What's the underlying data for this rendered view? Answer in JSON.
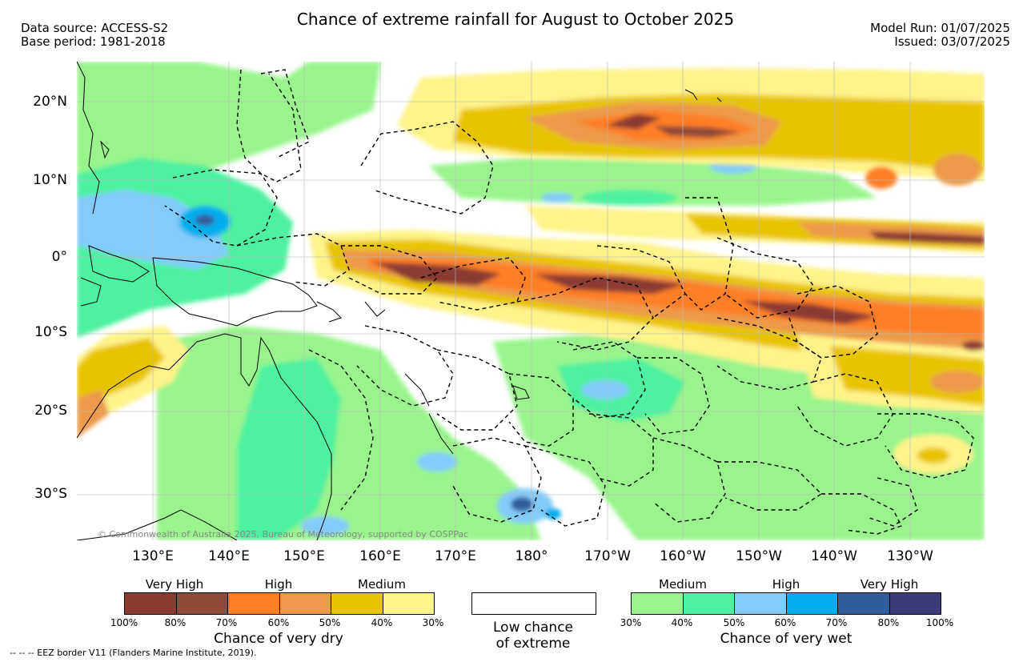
{
  "header": {
    "title": "Chance of extreme rainfall for August to October 2025",
    "data_source": "Data source: ACCESS-S2",
    "base_period": "Base period: 1981-2018",
    "model_run": "Model Run: 01/07/2025",
    "issued": "Issued: 03/07/2025"
  },
  "map": {
    "copyright": "© Commonwealth of Australia 2025, Bureau of Meteorology, supported by COSPPac",
    "lat_labels": [
      "20°N",
      "10°N",
      "0°",
      "10°S",
      "20°S",
      "30°S"
    ],
    "lon_labels": [
      "130°E",
      "140°E",
      "150°E",
      "160°E",
      "170°E",
      "180°",
      "170°W",
      "160°W",
      "150°W",
      "140°W",
      "130°W"
    ],
    "colors": {
      "land_outline": "#000000",
      "eez_border": "#000000",
      "gridline": "#bbbbbb"
    }
  },
  "legend": {
    "dry": {
      "categories": [
        "Very High",
        "High",
        "Medium"
      ],
      "colors": [
        "#8b3a30",
        "#8f4a38",
        "#ff7f27",
        "#ec9a4a",
        "#e8c400",
        "#fff38a"
      ],
      "ticks": [
        "100%",
        "80%",
        "70%",
        "60%",
        "50%",
        "40%",
        "30%"
      ],
      "caption": "Chance of very dry"
    },
    "low": {
      "color": "#ffffff",
      "caption_line1": "Low chance",
      "caption_line2": "of extreme"
    },
    "wet": {
      "categories": [
        "Medium",
        "High",
        "Very High"
      ],
      "colors": [
        "#99f48c",
        "#4df19f",
        "#82cbfa",
        "#00aeed",
        "#315d9c",
        "#3d3b78"
      ],
      "ticks": [
        "30%",
        "40%",
        "50%",
        "60%",
        "70%",
        "80%",
        "100%"
      ],
      "caption": "Chance of very wet"
    }
  },
  "footnote": "--  --  -- EEZ border V11 (Flanders Marine Institute, 2019)."
}
